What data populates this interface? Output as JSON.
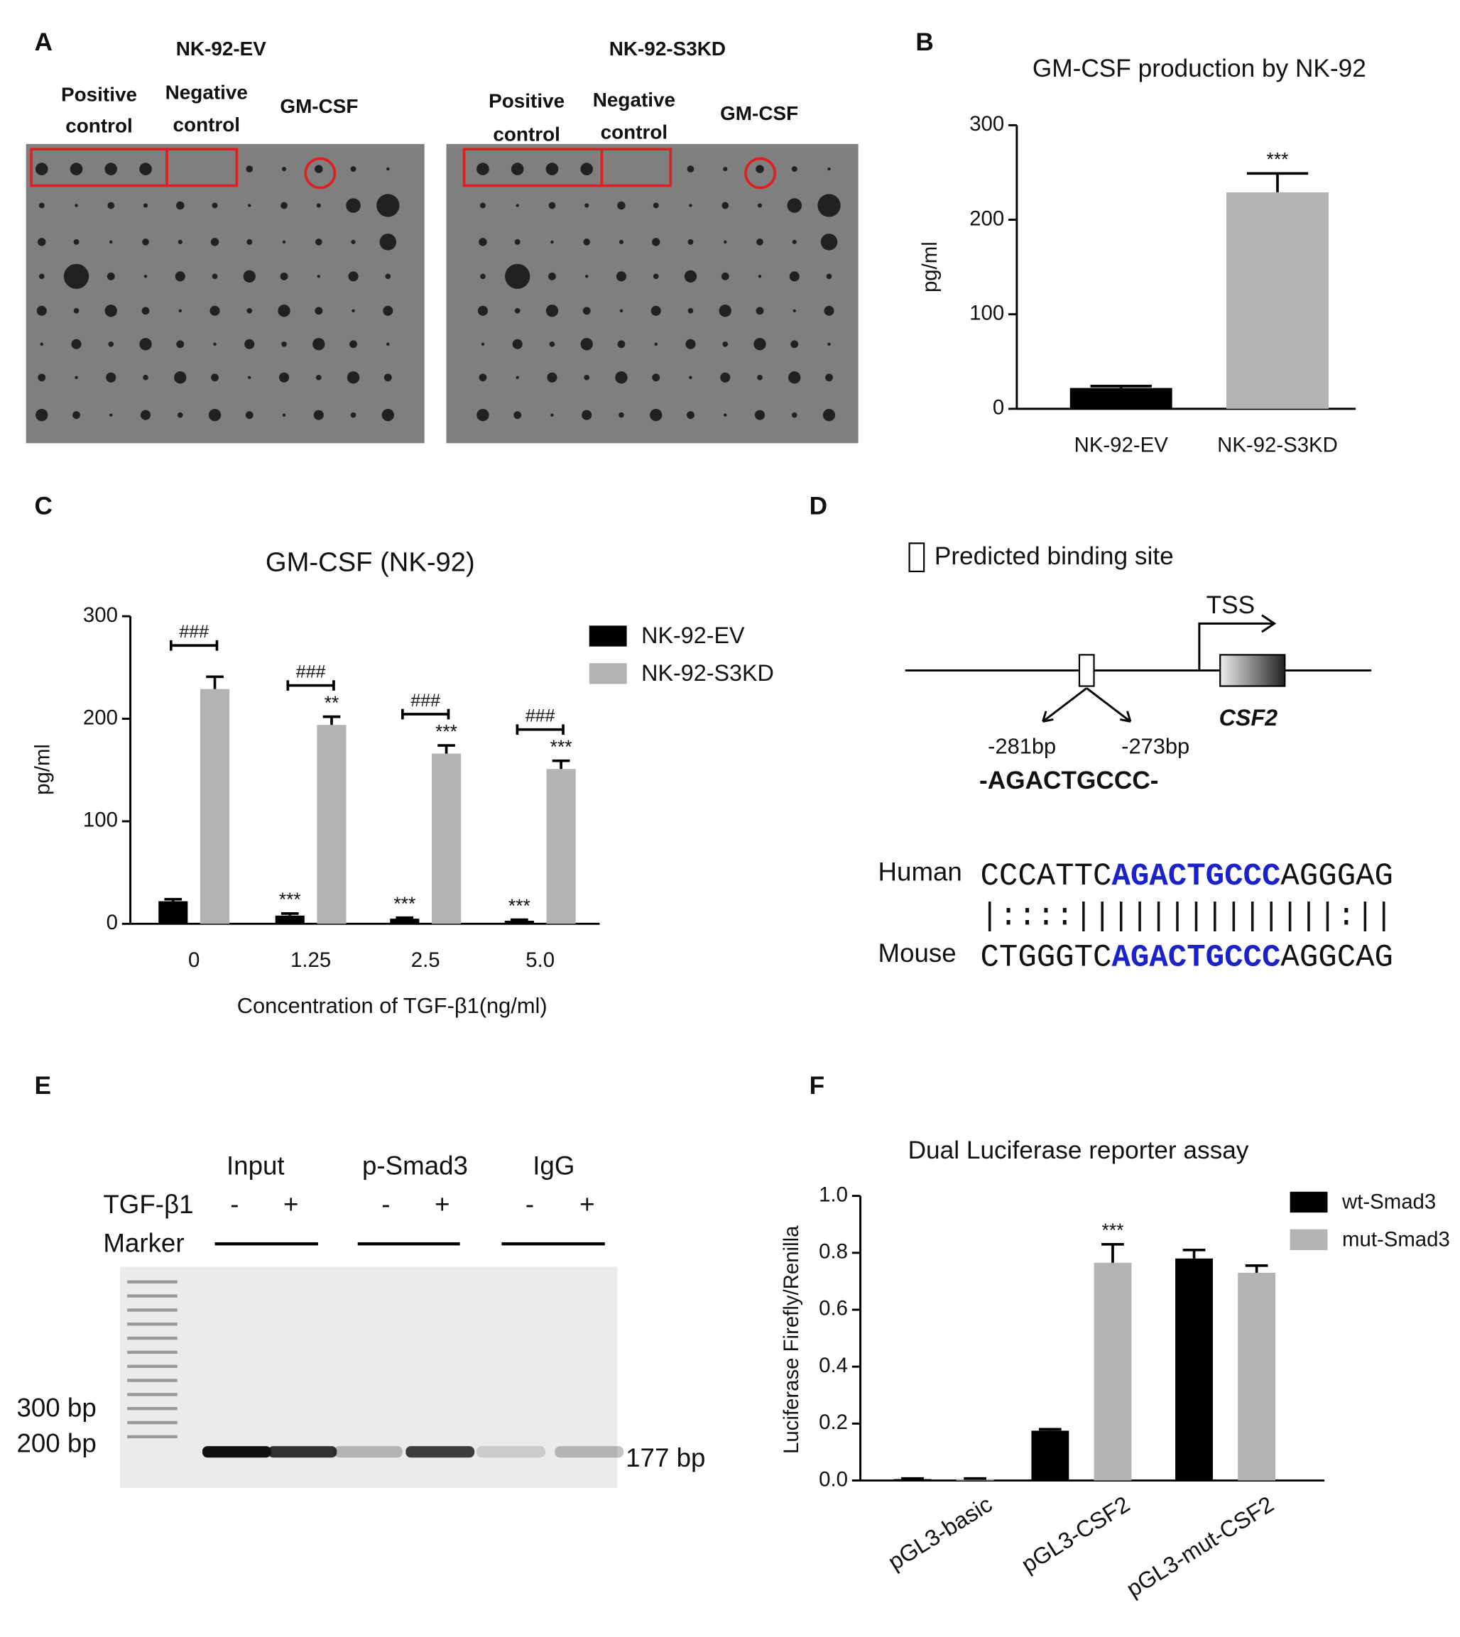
{
  "panel_labels": [
    "A",
    "B",
    "C",
    "D",
    "E",
    "F"
  ],
  "blot_a": [
    {
      "title": "NK-92-EV",
      "positive": [
        "Positive",
        "control"
      ],
      "negative": [
        "Negative",
        "control"
      ],
      "target": "GM-CSF"
    },
    {
      "title": "NK-92-S3KD",
      "positive": [
        "Positive",
        "control"
      ],
      "negative": [
        "Negative",
        "control"
      ],
      "target": "GM-CSF"
    }
  ],
  "diagram_d": {
    "legend": "Predicted binding site",
    "tss": "TSS",
    "gene": "CSF2",
    "start": "-281bp",
    "end": "-273bp",
    "motif": "-AGACTGCCC-",
    "sequences": [
      {
        "species": "Human",
        "left": "CCCATTC",
        "site": "AGACTGCCC",
        "right": "AGGGAG"
      },
      {
        "species": "Mouse",
        "left": "CTGGGTC",
        "site": "AGACTGCCC",
        "right": "AGGCAG"
      }
    ],
    "match": "|::::||||||||||||||:||"
  },
  "gel_e": {
    "groups": [
      "Input",
      "p-Smad3",
      "IgG"
    ],
    "treatment": "TGF-β1",
    "signs": [
      "-",
      "+",
      "-",
      "+",
      "-",
      "+"
    ],
    "marker": "Marker",
    "ladder": [
      "300 bp",
      "200 bp"
    ],
    "product": "177 bp"
  },
  "chart_data": [
    {
      "type": "bar",
      "title": "GM-CSF production by NK-92",
      "y_label": "pg/ml",
      "categories": [
        "NK-92-EV",
        "NK-92-S3KD"
      ],
      "values": [
        22,
        229
      ],
      "errors": [
        2,
        20
      ],
      "colors": [
        "#000000",
        "#b3b3b3"
      ],
      "significance": [
        null,
        "***"
      ],
      "ylim": [
        0,
        300
      ],
      "yticks": [
        0,
        100,
        200,
        300
      ],
      "grid": false
    },
    {
      "type": "bar",
      "title": "GM-CSF (NK-92)",
      "y_label": "pg/ml",
      "x_label": "Concentration of TGF-β1(ng/ml)",
      "categories": [
        "0",
        "1.25",
        "2.5",
        "5.0"
      ],
      "series": [
        {
          "name": "NK-92-EV",
          "color": "#000000",
          "values": [
            22,
            8,
            5,
            3
          ],
          "errors": [
            2,
            2,
            1,
            1
          ],
          "significance": [
            null,
            "***",
            "***",
            "***"
          ]
        },
        {
          "name": "NK-92-S3KD",
          "color": "#b3b3b3",
          "values": [
            229,
            194,
            166,
            151
          ],
          "errors": [
            12,
            8,
            8,
            8
          ],
          "significance": [
            null,
            "**",
            "***",
            "***"
          ]
        }
      ],
      "brackets": [
        "###",
        "###",
        "###",
        "###"
      ],
      "legend": "upper right",
      "ylim": [
        0,
        300
      ],
      "yticks": [
        0,
        100,
        200,
        300
      ],
      "grid": false
    },
    {
      "type": "bar",
      "title": "Dual Luciferase reporter assay",
      "y_label": "Luciferase Firefly/Renilla",
      "categories": [
        "pGL3-basic",
        "pGL3-CSF2",
        "pGL3-mut-CSF2"
      ],
      "series": [
        {
          "name": "wt-Smad3",
          "color": "#000000",
          "values": [
            0.005,
            0.175,
            0.78
          ],
          "errors": [
            0.002,
            0.005,
            0.03
          ],
          "significance": [
            null,
            null,
            null
          ]
        },
        {
          "name": "mut-Smad3",
          "color": "#b3b3b3",
          "values": [
            0.005,
            0.765,
            0.73
          ],
          "errors": [
            0.002,
            0.065,
            0.025
          ],
          "significance": [
            null,
            "***",
            null
          ]
        }
      ],
      "legend": "upper right",
      "ylim": [
        0,
        1
      ],
      "yticks": [
        {
          "value": 0,
          "label": "0.0"
        },
        0.2,
        0.4,
        0.6,
        0.8,
        {
          "value": 1,
          "label": "1.0"
        }
      ],
      "grid": false
    }
  ]
}
